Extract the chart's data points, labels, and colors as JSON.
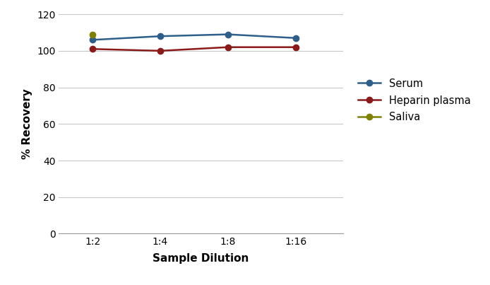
{
  "x_labels": [
    "1:2",
    "1:4",
    "1:8",
    "1:16"
  ],
  "x_positions": [
    0,
    1,
    2,
    3
  ],
  "serum": [
    106,
    108,
    109,
    107
  ],
  "heparin_plasma": [
    101,
    100,
    102,
    102
  ],
  "saliva_x": [
    0
  ],
  "saliva_y": [
    109
  ],
  "serum_color": "#2E5F8A",
  "heparin_color": "#8B1A1A",
  "saliva_color": "#808000",
  "ylabel": "% Recovery",
  "xlabel": "Sample Dilution",
  "ylim": [
    0,
    120
  ],
  "yticks": [
    0,
    20,
    40,
    60,
    80,
    100,
    120
  ],
  "legend_labels": [
    "Serum",
    "Heparin plasma",
    "Saliva"
  ],
  "grid_color": "#C8C8C8",
  "background_color": "#FFFFFF",
  "marker_size": 6,
  "line_width": 1.8
}
